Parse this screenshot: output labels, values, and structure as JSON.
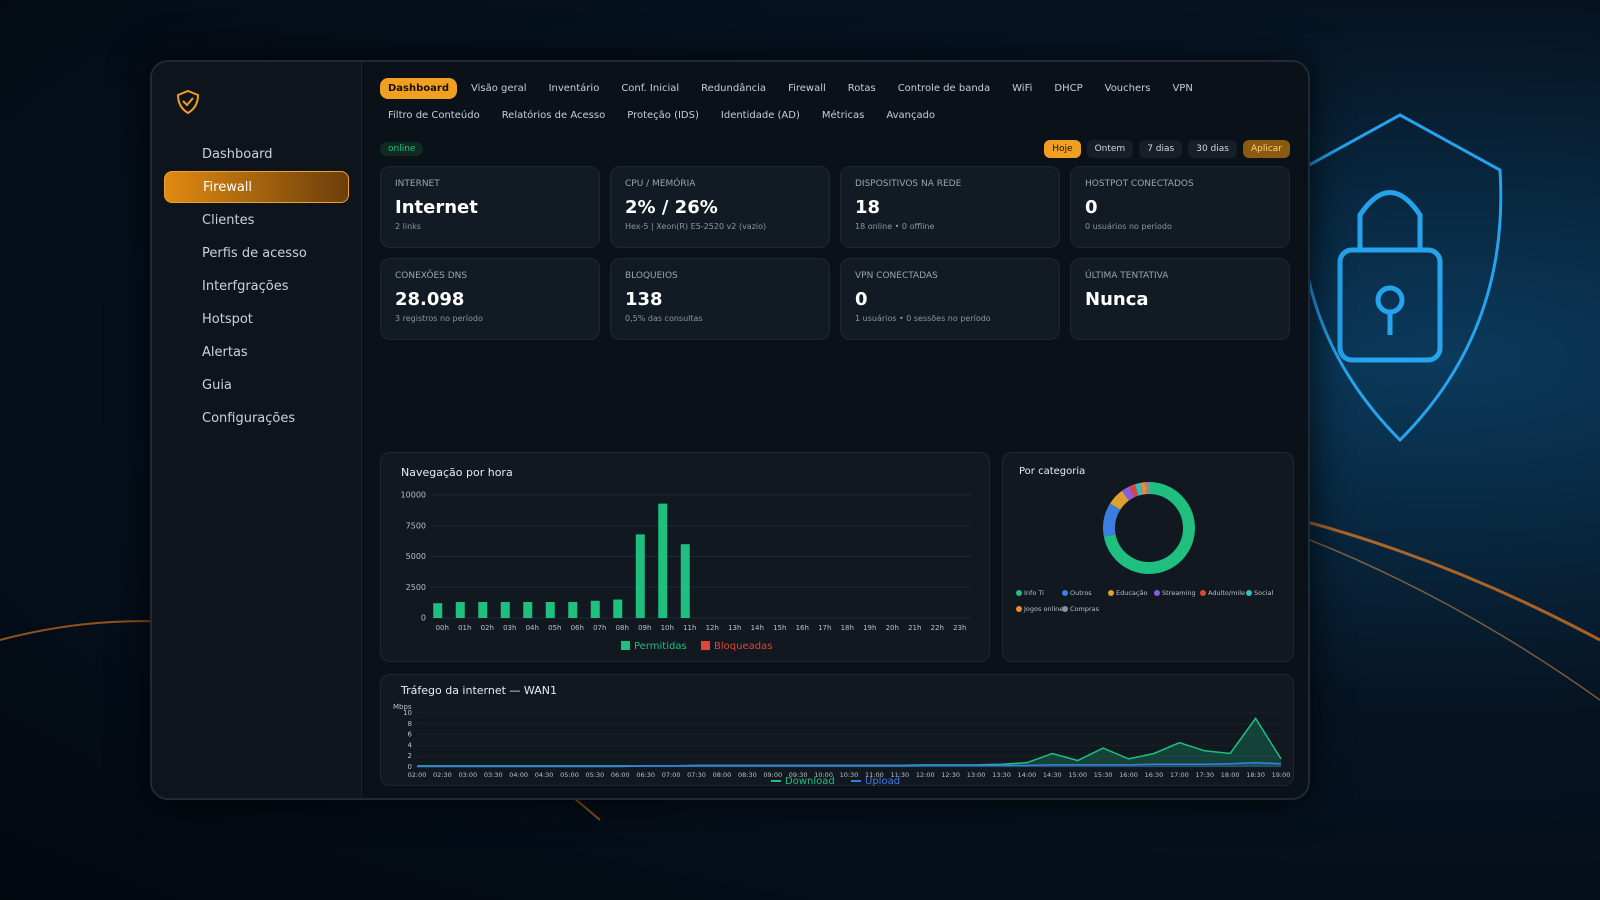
{
  "sidebar": {
    "items": [
      "Dashboard",
      "Firewall",
      "Clientes",
      "Perfis de acesso",
      "Interfgrações",
      "Hotspot",
      "Alertas",
      "Guia",
      "Configurações"
    ]
  },
  "tabs": {
    "row1": [
      "Dashboard",
      "Visão geral",
      "Inventário",
      "Conf. Inicial",
      "Redundância",
      "Firewall",
      "Rotas",
      "Controle de banda",
      "WiFi",
      "DHCP",
      "Vouchers",
      "VPN"
    ],
    "row2": [
      "Filtro de Conteúdo",
      "Relatórios de Acesso",
      "Proteção (IDS)",
      "Identidade (AD)",
      "Métricas",
      "Avançado"
    ]
  },
  "status": "online",
  "filters": [
    "Hoje",
    "Ontem",
    "7 dias",
    "30 dias",
    "Aplicar"
  ],
  "cards": [
    {
      "label": "INTERNET",
      "value": "Internet",
      "sub": "2 links"
    },
    {
      "label": "CPU / MEMÓRIA",
      "value": "2% / 26%",
      "sub": "Hex-5 | Xeon(R) E5-2520 v2 (vazio)"
    },
    {
      "label": "DISPOSITIVOS NA REDE",
      "value": "18",
      "sub": "18 online • 0 offline"
    },
    {
      "label": "HOSTPOT CONECTADOS",
      "value": "0",
      "sub": "0 usuários no período"
    },
    {
      "label": "CONEXÕES DNS",
      "value": "28.098",
      "sub": "3 registros no período"
    },
    {
      "label": "BLOQUEIOS",
      "value": "138",
      "sub": "0,5% das consultas"
    },
    {
      "label": "VPN CONECTADAS",
      "value": "0",
      "sub": "1 usuários • 0 sessões no período"
    },
    {
      "label": "ÚLTIMA TENTATIVA",
      "value": "Nunca"
    }
  ],
  "chart_data": [
    {
      "type": "bar",
      "title": "Navegação por hora",
      "categories": [
        "00h",
        "01h",
        "02h",
        "03h",
        "04h",
        "05h",
        "06h",
        "07h",
        "08h",
        "09h",
        "10h",
        "11h",
        "12h",
        "13h",
        "14h",
        "15h",
        "16h",
        "17h",
        "18h",
        "19h",
        "20h",
        "21h",
        "22h",
        "23h"
      ],
      "series": [
        {
          "name": "Permitidas",
          "color": "#1fbf7f",
          "values": [
            1200,
            1300,
            1300,
            1300,
            1300,
            1300,
            1300,
            1400,
            1500,
            6800,
            9300,
            6000,
            0,
            0,
            0,
            0,
            0,
            0,
            0,
            0,
            0,
            0,
            0,
            0
          ]
        },
        {
          "name": "Bloqueadas",
          "color": "#e0453a",
          "values": [
            0,
            0,
            0,
            0,
            0,
            0,
            0,
            0,
            0,
            0,
            0,
            0,
            0,
            0,
            0,
            0,
            0,
            0,
            0,
            0,
            0,
            0,
            0,
            0
          ]
        }
      ],
      "ylim": [
        0,
        10000
      ],
      "yticks": [
        0,
        2500,
        5000,
        7500,
        10000
      ],
      "grid": true
    },
    {
      "type": "pie",
      "title": "Por categoria",
      "categories": [
        "Info Ti",
        "Outros",
        "Educação",
        "Streaming",
        "Adulto/mile",
        "Social",
        "Jogos online",
        "Compras"
      ],
      "values": [
        72,
        12,
        6,
        3,
        2,
        2,
        2,
        1
      ],
      "colors": [
        "#1fbf7f",
        "#3b7de0",
        "#e0a030",
        "#8a5ce0",
        "#e0453a",
        "#30c0c0",
        "#f08a30",
        "#8a8f99"
      ]
    },
    {
      "type": "line",
      "title": "Tráfego da internet — WAN1",
      "y_label": "Mbps",
      "categories": [
        "02:00",
        "02:30",
        "03:00",
        "03:30",
        "04:00",
        "04:30",
        "05:00",
        "05:30",
        "06:00",
        "06:30",
        "07:00",
        "07:30",
        "08:00",
        "08:30",
        "09:00",
        "09:30",
        "10:00",
        "10:30",
        "11:00",
        "11:30",
        "12:00",
        "12:30",
        "13:00",
        "13:30",
        "14:00",
        "14:30",
        "15:00",
        "15:30",
        "16:00",
        "16:30",
        "17:00",
        "17:30",
        "18:00",
        "18:30",
        "19:00"
      ],
      "series": [
        {
          "name": "Download",
          "color": "#1fbf7f",
          "values": [
            0.2,
            0.2,
            0.2,
            0.2,
            0.2,
            0.2,
            0.2,
            0.2,
            0.2,
            0.2,
            0.2,
            0.3,
            0.3,
            0.3,
            0.3,
            0.3,
            0.3,
            0.3,
            0.3,
            0.3,
            0.4,
            0.4,
            0.4,
            0.5,
            0.8,
            2.5,
            1.2,
            3.5,
            1.5,
            2.5,
            4.5,
            3,
            2.5,
            9,
            1.5
          ]
        },
        {
          "name": "Upload",
          "color": "#3b7de0",
          "values": [
            0.1,
            0.1,
            0.1,
            0.1,
            0.1,
            0.1,
            0.1,
            0.1,
            0.1,
            0.2,
            0.2,
            0.2,
            0.2,
            0.2,
            0.2,
            0.2,
            0.2,
            0.2,
            0.2,
            0.2,
            0.3,
            0.3,
            0.3,
            0.3,
            0.3,
            0.4,
            0.4,
            0.4,
            0.4,
            0.5,
            0.5,
            0.5,
            0.6,
            0.8,
            0.6
          ]
        }
      ],
      "ylim": [
        0,
        10
      ],
      "yticks": [
        0,
        2,
        4,
        6,
        8,
        10
      ],
      "grid": true
    }
  ]
}
